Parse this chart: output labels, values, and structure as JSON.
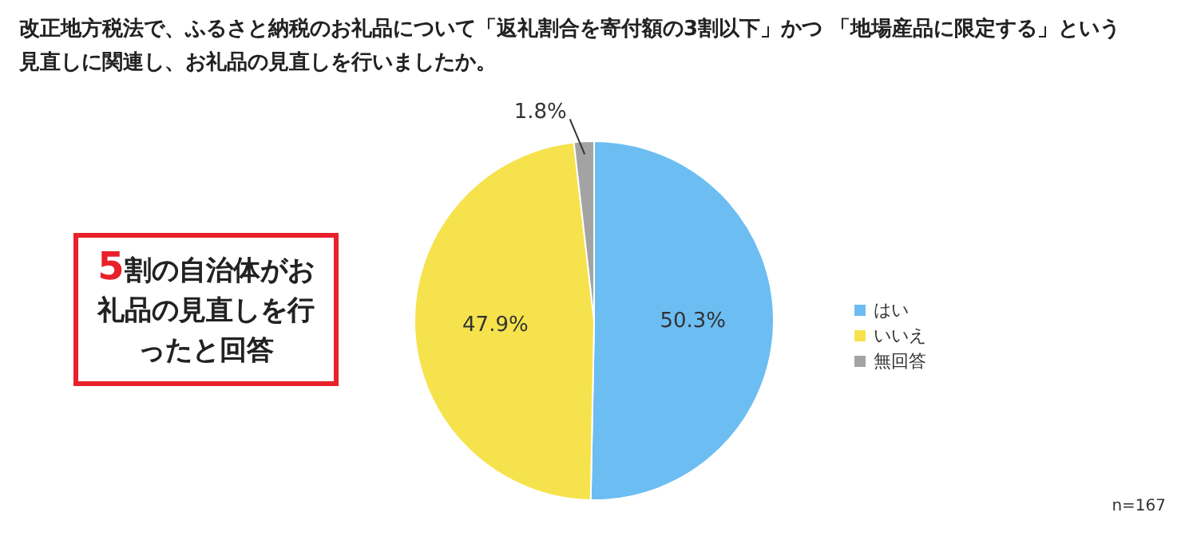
{
  "chart_data": {
    "type": "pie",
    "title": "改正地方税法で、ふるさと納税のお礼品について「返礼割合を寄付額の3割以下」かつ 「地場産品に限定する」という見直しに関連し、お礼品の見直しを行いましたか。",
    "categories": [
      "はい",
      "いいえ",
      "無回答"
    ],
    "values": [
      50.3,
      47.9,
      1.8
    ],
    "value_labels": [
      "50.3%",
      "47.9%",
      "1.8%"
    ],
    "colors": [
      "#6cbdf2",
      "#f6e24c",
      "#a3a3a3"
    ],
    "legend": "right",
    "annotations": [
      "5割の自治体がお礼品の見直しを行ったと回答",
      "n=167"
    ]
  }
}
